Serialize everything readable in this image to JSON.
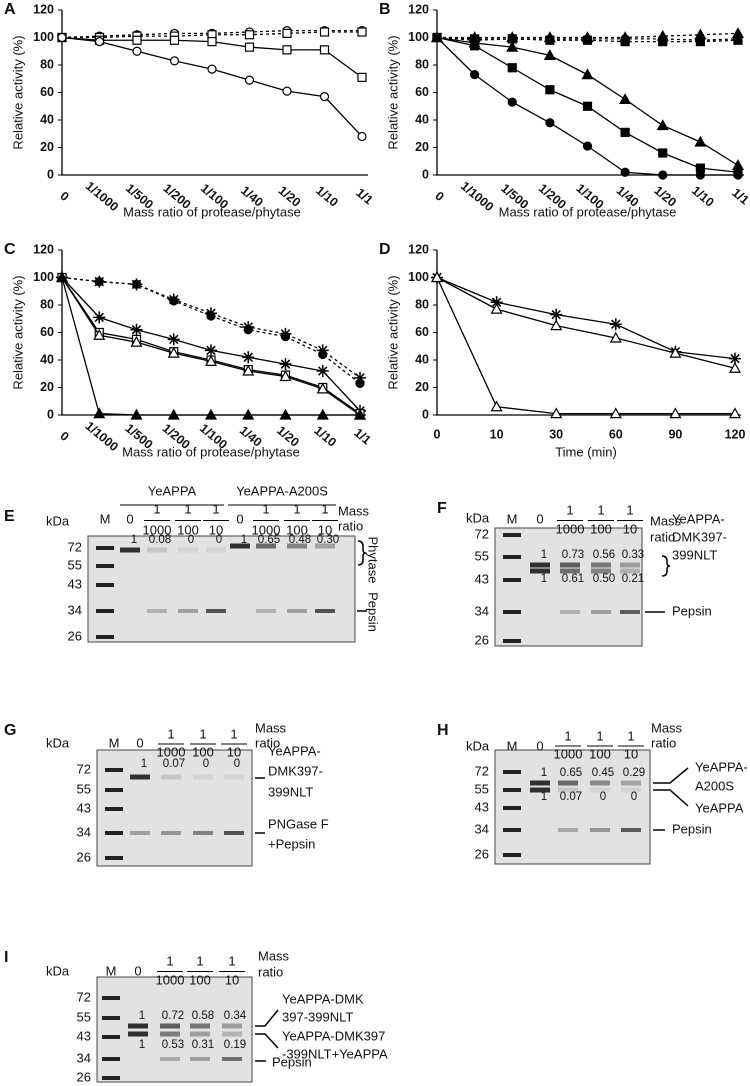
{
  "chart_data": [
    {
      "type": "line",
      "panel": "A",
      "ylabel": "Relative activity (%)",
      "xlabel": "Mass ratio of protease/phytase",
      "categories": [
        "0",
        "1/1000",
        "1/500",
        "1/200",
        "1/100",
        "1/40",
        "1/20",
        "1/10",
        "1/1"
      ],
      "ylim": [
        0,
        120
      ],
      "yticks": [
        0,
        20,
        40,
        60,
        80,
        100,
        120
      ],
      "xtick_rotation": 40,
      "series": [
        {
          "marker": "circle-open",
          "dashed": true,
          "color": "#000",
          "values": [
            100,
            101,
            102,
            103,
            103,
            104,
            105,
            105,
            105
          ]
        },
        {
          "marker": "square-open",
          "dashed": true,
          "color": "#000",
          "values": [
            100,
            100,
            101,
            101,
            102,
            102,
            103,
            104,
            104
          ]
        },
        {
          "marker": "square-open",
          "dashed": false,
          "color": "#000",
          "values": [
            100,
            98,
            98,
            98,
            97,
            93,
            91,
            91,
            71
          ]
        },
        {
          "marker": "circle-open",
          "dashed": false,
          "color": "#000",
          "values": [
            100,
            97,
            90,
            83,
            77,
            69,
            61,
            57,
            28
          ]
        }
      ]
    },
    {
      "type": "line",
      "panel": "B",
      "ylabel": "Relative activity (%)",
      "xlabel": "Mass ratio of protease/phytase",
      "categories": [
        "0",
        "1/1000",
        "1/500",
        "1/200",
        "1/100",
        "1/40",
        "1/20",
        "1/10",
        "1/1"
      ],
      "ylim": [
        0,
        120
      ],
      "yticks": [
        0,
        20,
        40,
        60,
        80,
        100,
        120
      ],
      "xtick_rotation": 40,
      "series": [
        {
          "marker": "triangle",
          "dashed": true,
          "color": "#000",
          "values": [
            100,
            100,
            100,
            100,
            100,
            100,
            101,
            102,
            103
          ]
        },
        {
          "marker": "square",
          "dashed": true,
          "color": "#000",
          "values": [
            100,
            99,
            99,
            98,
            98,
            97,
            97,
            97,
            98
          ]
        },
        {
          "marker": "circle",
          "dashed": true,
          "color": "#000",
          "values": [
            100,
            98,
            99,
            99,
            99,
            99,
            99,
            98,
            99
          ]
        },
        {
          "marker": "triangle",
          "dashed": false,
          "color": "#000",
          "values": [
            100,
            96,
            93,
            87,
            73,
            55,
            36,
            24,
            7
          ]
        },
        {
          "marker": "square",
          "dashed": false,
          "color": "#000",
          "values": [
            100,
            94,
            78,
            62,
            50,
            31,
            16,
            5,
            2
          ]
        },
        {
          "marker": "circle",
          "dashed": false,
          "color": "#000",
          "values": [
            100,
            73,
            53,
            38,
            21,
            2,
            0,
            0,
            0
          ]
        }
      ]
    },
    {
      "type": "line",
      "panel": "C",
      "ylabel": "Relative activity (%)",
      "xlabel": "Mass ratio of protease/phytase",
      "categories": [
        "0",
        "1/1000",
        "1/500",
        "1/200",
        "1/100",
        "1/40",
        "1/20",
        "1/10",
        "1/1"
      ],
      "ylim": [
        0,
        120
      ],
      "yticks": [
        0,
        20,
        40,
        60,
        80,
        100,
        120
      ],
      "xtick_rotation": 40,
      "series": [
        {
          "marker": "star",
          "dashed": true,
          "color": "#000",
          "values": [
            100,
            97,
            95,
            84,
            74,
            64,
            59,
            47,
            27
          ]
        },
        {
          "marker": "circle",
          "dashed": true,
          "color": "#000",
          "values": [
            100,
            97,
            95,
            83,
            72,
            62,
            57,
            44,
            23
          ]
        },
        {
          "marker": "star",
          "dashed": false,
          "color": "#000",
          "values": [
            100,
            71,
            62,
            55,
            47,
            42,
            37,
            32,
            3
          ]
        },
        {
          "marker": "square-open",
          "dashed": false,
          "color": "#000",
          "values": [
            100,
            60,
            55,
            46,
            40,
            33,
            29,
            20,
            1
          ]
        },
        {
          "marker": "triangle-open",
          "dashed": false,
          "color": "#000",
          "values": [
            100,
            58,
            53,
            45,
            39,
            32,
            28,
            19,
            0
          ]
        },
        {
          "marker": "triangle",
          "dashed": false,
          "color": "#000",
          "values": [
            100,
            1,
            0,
            0,
            0,
            0,
            0,
            0,
            0
          ]
        }
      ]
    },
    {
      "type": "line",
      "panel": "D",
      "ylabel": "Relative activity (%)",
      "xlabel": "Time (min)",
      "categories": [
        "0",
        "10",
        "30",
        "60",
        "90",
        "120"
      ],
      "ylim": [
        0,
        120
      ],
      "yticks": [
        0,
        20,
        40,
        60,
        80,
        100,
        120
      ],
      "xtick_rotation": 0,
      "series": [
        {
          "marker": "star",
          "dashed": false,
          "color": "#000",
          "values": [
            100,
            82,
            73,
            66,
            46,
            41
          ]
        },
        {
          "marker": "triangle-open",
          "dashed": false,
          "color": "#000",
          "values": [
            100,
            77,
            65,
            56,
            45,
            34
          ]
        },
        {
          "marker": "triangle-open",
          "dashed": false,
          "color": "#000",
          "values": [
            100,
            6,
            1,
            1,
            1,
            1
          ]
        }
      ]
    }
  ],
  "gels": [
    {
      "panel": "E",
      "unit": "kDa",
      "markers": [
        "72",
        "55",
        "43",
        "34",
        "26"
      ],
      "groups": [
        "YeAPPA",
        "YeAPPA-A200S"
      ],
      "lanes": [
        "M",
        "0",
        [
          "1",
          "1000"
        ],
        [
          "1",
          "100"
        ],
        [
          "1",
          "10"
        ],
        "0",
        [
          "1",
          "1000"
        ],
        [
          "1",
          "100"
        ],
        [
          "1",
          "10"
        ]
      ],
      "mass_ratio": [
        "Mass",
        "ratio"
      ],
      "band_values": [
        [
          "1",
          "0.08",
          "0",
          "0",
          "1",
          "0.65",
          "0.48",
          "0.30"
        ]
      ],
      "right_labels": [
        "Phytase",
        "Pepsin"
      ]
    },
    {
      "panel": "F",
      "unit": "kDa",
      "markers": [
        "72",
        "55",
        "43",
        "34",
        "26"
      ],
      "lanes": [
        "M",
        "0",
        [
          "1",
          "1000"
        ],
        [
          "1",
          "100"
        ],
        [
          "1",
          "10"
        ]
      ],
      "mass_ratio": [
        "Mass",
        "ratio"
      ],
      "band_values": [
        [
          "1",
          "0.73",
          "0.56",
          "0.33"
        ],
        [
          "1",
          "0.61",
          "0.50",
          "0.21"
        ]
      ],
      "right_labels": [
        "YeAPPA-",
        "DMK397-",
        "399NLT",
        "Pepsin"
      ]
    },
    {
      "panel": "G",
      "unit": "kDa",
      "markers": [
        "72",
        "55",
        "43",
        "34",
        "26"
      ],
      "lanes": [
        "M",
        "0",
        [
          "1",
          "1000"
        ],
        [
          "1",
          "100"
        ],
        [
          "1",
          "10"
        ]
      ],
      "mass_ratio": [
        "Mass",
        "ratio"
      ],
      "band_values": [
        [
          "1",
          "0.07",
          "0",
          "0"
        ]
      ],
      "right_labels": [
        "YeAPPA-",
        "DMK397-",
        "399NLT",
        "PNGase F",
        "+Pepsin"
      ]
    },
    {
      "panel": "H",
      "unit": "kDa",
      "markers": [
        "72",
        "55",
        "43",
        "34",
        "26"
      ],
      "lanes": [
        "M",
        "0",
        [
          "1",
          "1000"
        ],
        [
          "1",
          "100"
        ],
        [
          "1",
          "10"
        ]
      ],
      "mass_ratio": [
        "Mass",
        "ratio"
      ],
      "band_values": [
        [
          "1",
          "0.65",
          "0.45",
          "0.29"
        ],
        [
          "1",
          "0.07",
          "0",
          "0"
        ]
      ],
      "right_labels": [
        "YeAPPA-",
        "A200S",
        "YeAPPA",
        "Pepsin"
      ]
    },
    {
      "panel": "I",
      "unit": "kDa",
      "markers": [
        "72",
        "55",
        "43",
        "34",
        "26"
      ],
      "lanes": [
        "M",
        "0",
        [
          "1",
          "1000"
        ],
        [
          "1",
          "100"
        ],
        [
          "1",
          "10"
        ]
      ],
      "mass_ratio": [
        "Mass",
        "ratio"
      ],
      "band_values": [
        [
          "1",
          "0.72",
          "0.58",
          "0.34"
        ],
        [
          "1",
          "0.53",
          "0.31",
          "0.19"
        ]
      ],
      "right_labels": [
        "YeAPPA-DMK",
        "397-399NLT",
        "YeAPPA-DMK397",
        "-399NLT+YeAPPA",
        "Pepsin"
      ]
    }
  ]
}
